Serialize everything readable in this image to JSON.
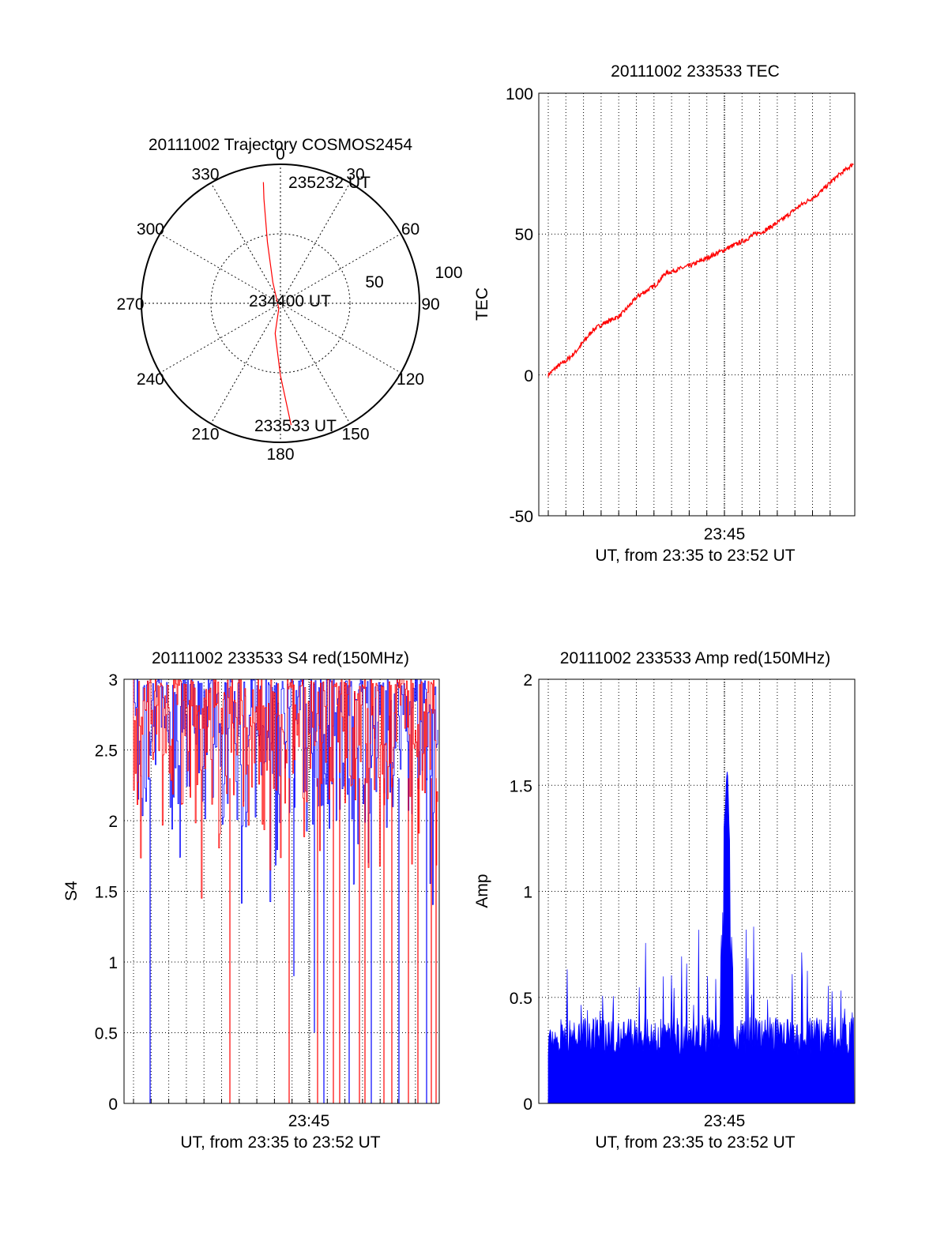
{
  "chart_data": [
    {
      "type": "polar",
      "title": "20111002 Trajectory COSMOS2454",
      "azimuth_labels": [
        "0",
        "30",
        "60",
        "90",
        "120",
        "150",
        "180",
        "210",
        "240",
        "270",
        "300",
        "330"
      ],
      "radial_labels": [
        "50",
        "100"
      ],
      "rlim": [
        0,
        100
      ],
      "grid": true,
      "series": [
        {
          "color": "#ff0000",
          "points": [
            [
              175,
              88
            ],
            [
              180,
              52
            ],
            [
              190,
              22
            ],
            [
              197,
              4
            ],
            [
              340,
              16
            ],
            [
              348,
              45
            ],
            [
              350,
              62
            ],
            [
              351,
              76
            ],
            [
              352,
              88
            ]
          ]
        }
      ],
      "annotations": [
        {
          "text": "235232 UT"
        },
        {
          "text": "234400 UT"
        },
        {
          "text": "233533 UT"
        }
      ]
    },
    {
      "type": "line",
      "title": "20111002 233533 TEC",
      "xlabel": "UT, from 23:35 to 23:52 UT",
      "ylabel": "TEC",
      "xtick_labels": [
        "23:45"
      ],
      "ytick_labels": [
        "-50",
        "0",
        "50",
        "100"
      ],
      "ylim": [
        -50,
        100
      ],
      "xlim_minutes": [
        23.58,
        23.88
      ],
      "grid": true,
      "series": [
        {
          "color": "#ff0000",
          "x_minutes": [
            0,
            0.5,
            1,
            1.5,
            2,
            2.5,
            3,
            4,
            5,
            6,
            6.5,
            7,
            8,
            9,
            10,
            11,
            11.5,
            12,
            13,
            14,
            15,
            16,
            17
          ],
          "values": [
            0,
            3,
            5,
            8,
            12,
            16,
            18,
            21,
            28,
            32,
            36,
            37,
            39,
            42,
            45,
            48,
            50,
            51,
            55,
            60,
            64,
            70,
            75
          ]
        }
      ]
    },
    {
      "type": "line",
      "title": "20111002 233533 S4 red(150MHz)",
      "xlabel": "UT, from 23:35 to 23:52 UT",
      "ylabel": "S4",
      "xtick_labels": [
        "23:45"
      ],
      "ytick_labels": [
        "0",
        "0.5",
        "1",
        "1.5",
        "2",
        "2.5",
        "3"
      ],
      "ylim": [
        0,
        3
      ],
      "grid": true,
      "series": [
        {
          "color": "#0000ff"
        },
        {
          "color": "#ff0000"
        }
      ]
    },
    {
      "type": "line",
      "title": "20111002 233533 Amp red(150MHz)",
      "xlabel": "UT, from 23:35 to 23:52 UT",
      "ylabel": "Amp",
      "xtick_labels": [
        "23:45"
      ],
      "ytick_labels": [
        "0",
        "0.5",
        "1",
        "1.5",
        "2"
      ],
      "ylim": [
        0,
        2
      ],
      "grid": true,
      "series": [
        {
          "color": "#0000ff",
          "baseline_level": 0.3,
          "peak_value": 1.67,
          "peak_time": "23:45"
        }
      ]
    }
  ]
}
